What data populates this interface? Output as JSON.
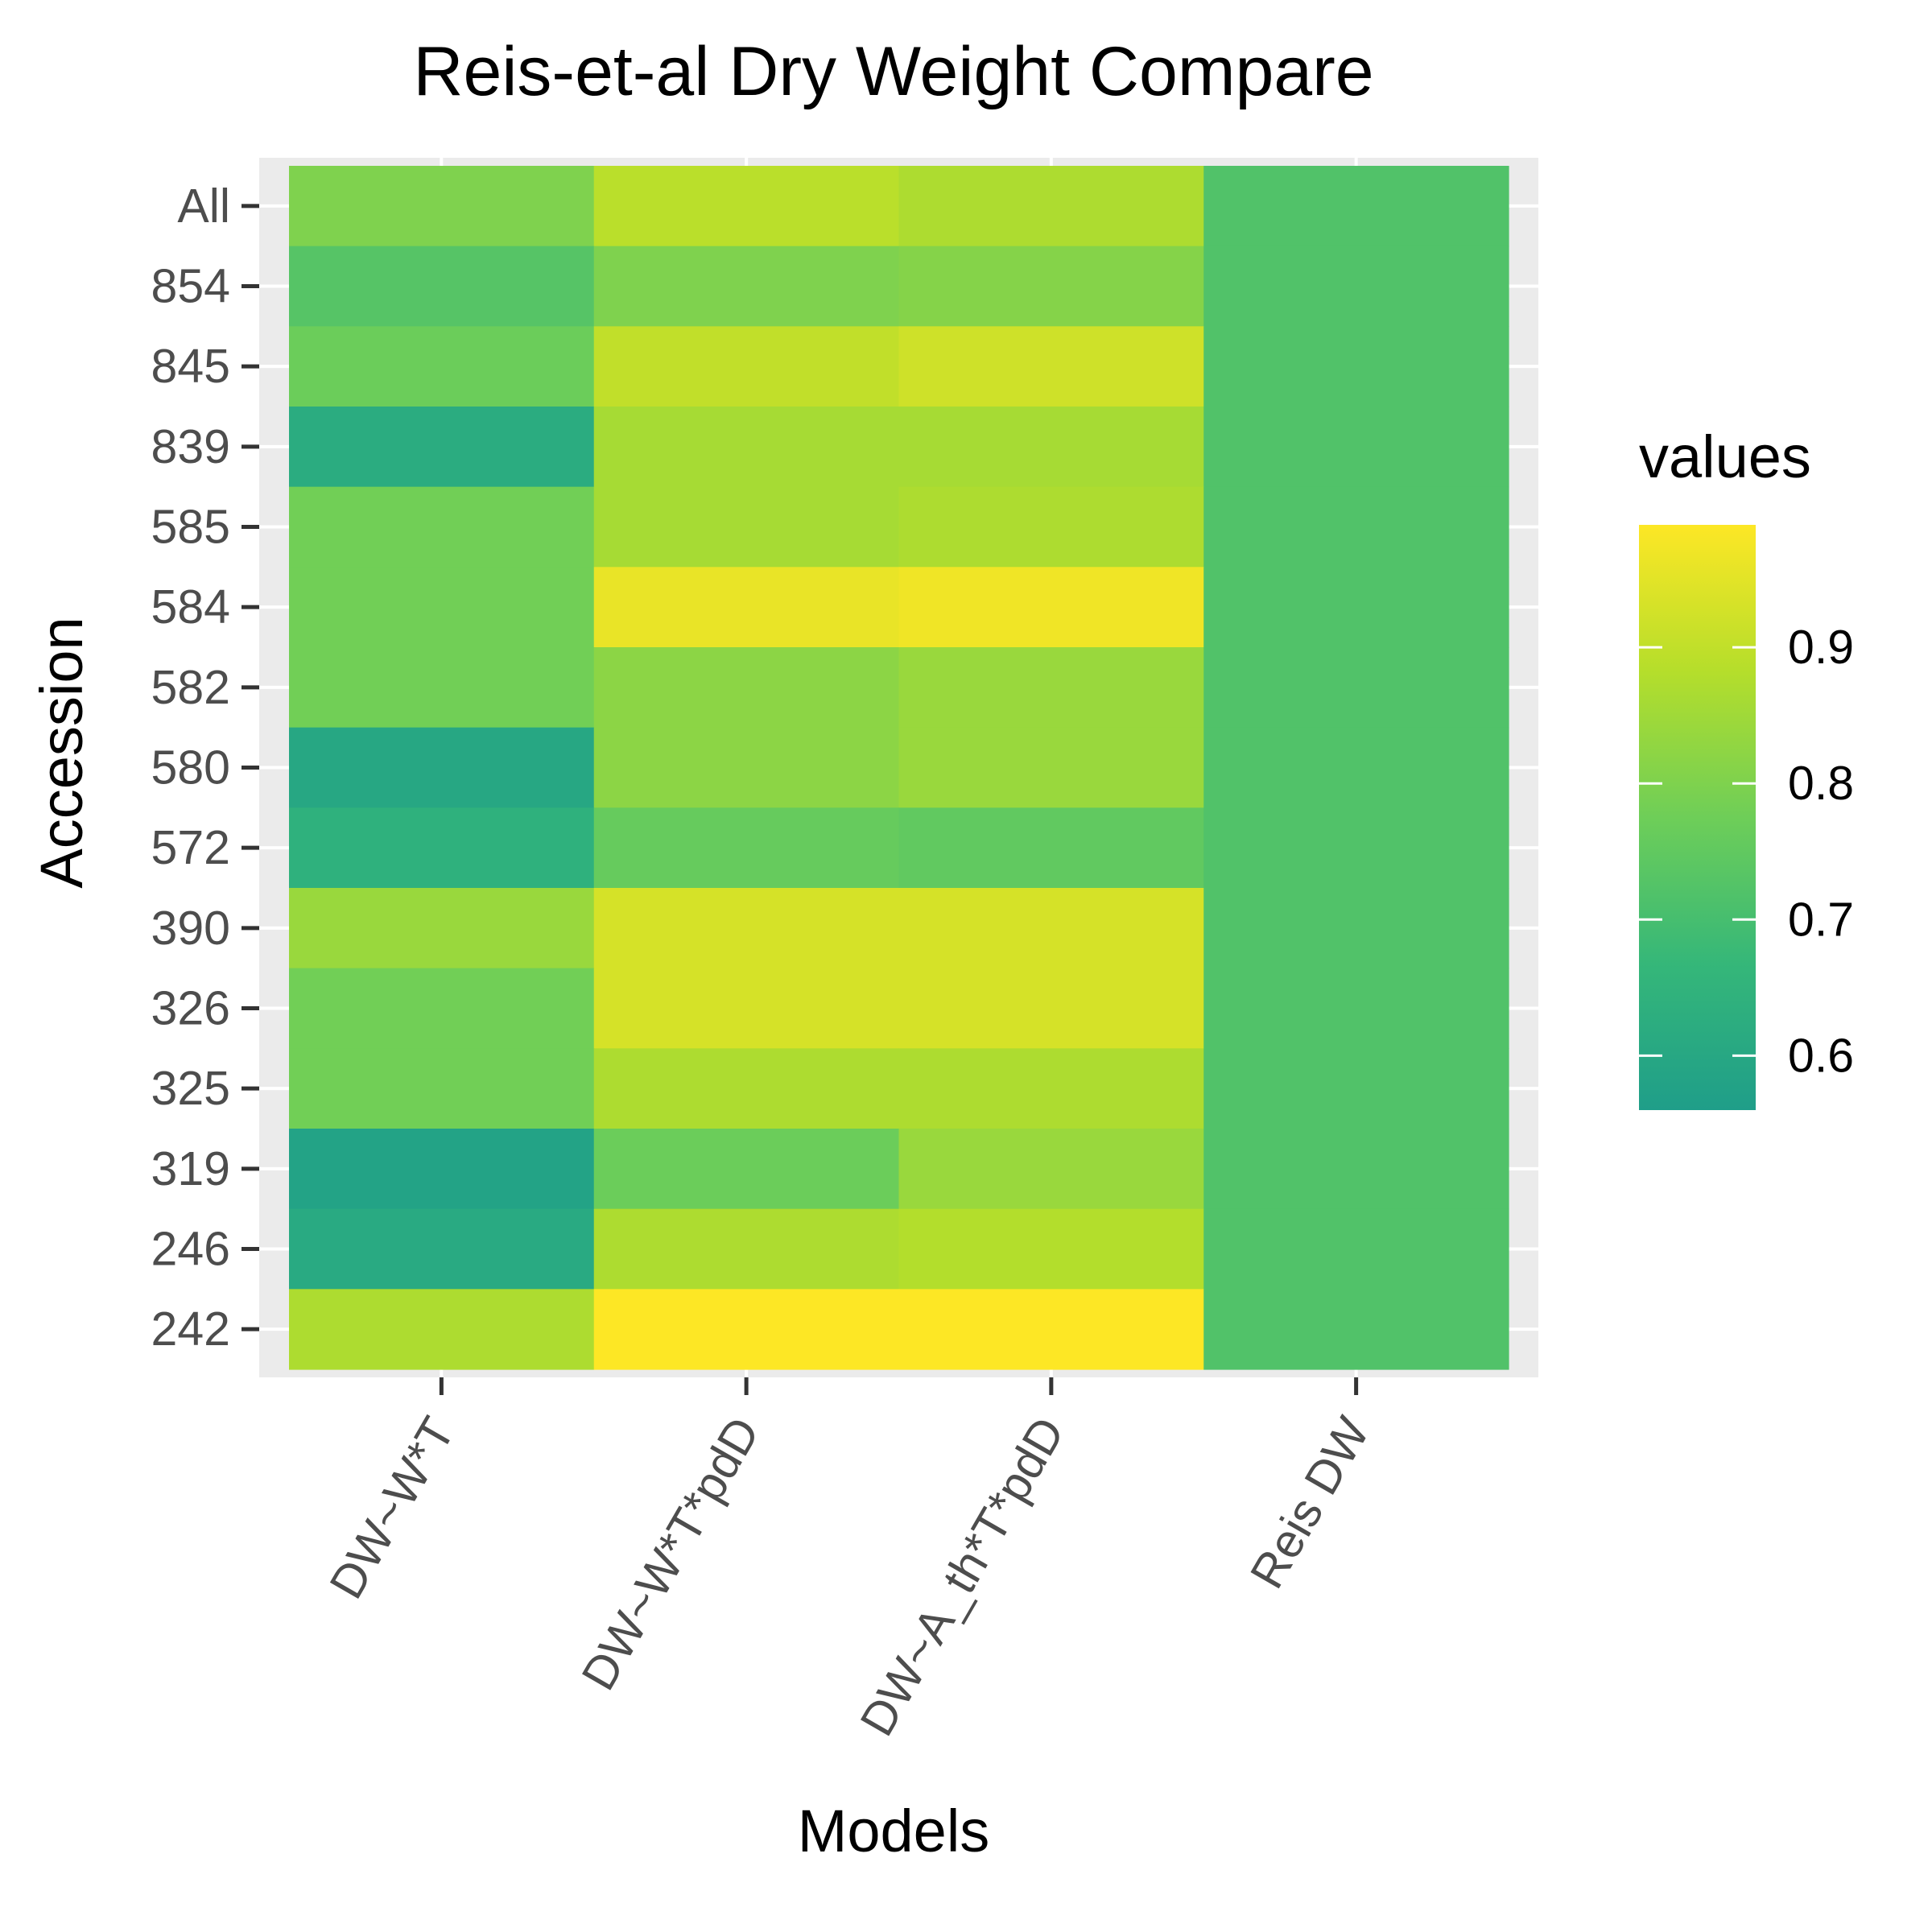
{
  "chart_data": {
    "type": "heatmap",
    "title": "Reis-et-al Dry Weight Compare",
    "xlabel": "Models",
    "ylabel": "Accession",
    "x_categories": [
      "DW~W*T",
      "DW~W*T*pdD",
      "DW~A_th*T*pdD",
      "Reis DW"
    ],
    "y_categories": [
      "All",
      "854",
      "845",
      "839",
      "585",
      "584",
      "582",
      "580",
      "572",
      "390",
      "326",
      "325",
      "319",
      "246",
      "242"
    ],
    "values": [
      [
        0.8,
        0.89,
        0.87,
        0.72
      ],
      [
        0.73,
        0.8,
        0.81,
        0.72
      ],
      [
        0.77,
        0.9,
        0.92,
        0.72
      ],
      [
        0.62,
        0.86,
        0.86,
        0.72
      ],
      [
        0.78,
        0.86,
        0.87,
        0.72
      ],
      [
        0.78,
        0.96,
        0.97,
        0.72
      ],
      [
        0.78,
        0.82,
        0.84,
        0.72
      ],
      [
        0.6,
        0.82,
        0.84,
        0.72
      ],
      [
        0.64,
        0.76,
        0.75,
        0.72
      ],
      [
        0.84,
        0.93,
        0.93,
        0.72
      ],
      [
        0.78,
        0.93,
        0.93,
        0.72
      ],
      [
        0.78,
        0.87,
        0.87,
        0.72
      ],
      [
        0.58,
        0.77,
        0.84,
        0.72
      ],
      [
        0.61,
        0.87,
        0.88,
        0.72
      ],
      [
        0.87,
        0.99,
        0.99,
        0.72
      ]
    ],
    "color_range": [
      0.56,
      0.99
    ],
    "colormap": [
      "#1f9e89",
      "#35b779",
      "#6ece58",
      "#b5de2b",
      "#fde725"
    ],
    "legend": {
      "title": "values",
      "ticks": [
        "0.6",
        "0.7",
        "0.8",
        "0.9"
      ],
      "tick_values": [
        0.6,
        0.7,
        0.8,
        0.9
      ],
      "position": "right"
    },
    "panel_background": "#ebebeb",
    "grid": true
  }
}
